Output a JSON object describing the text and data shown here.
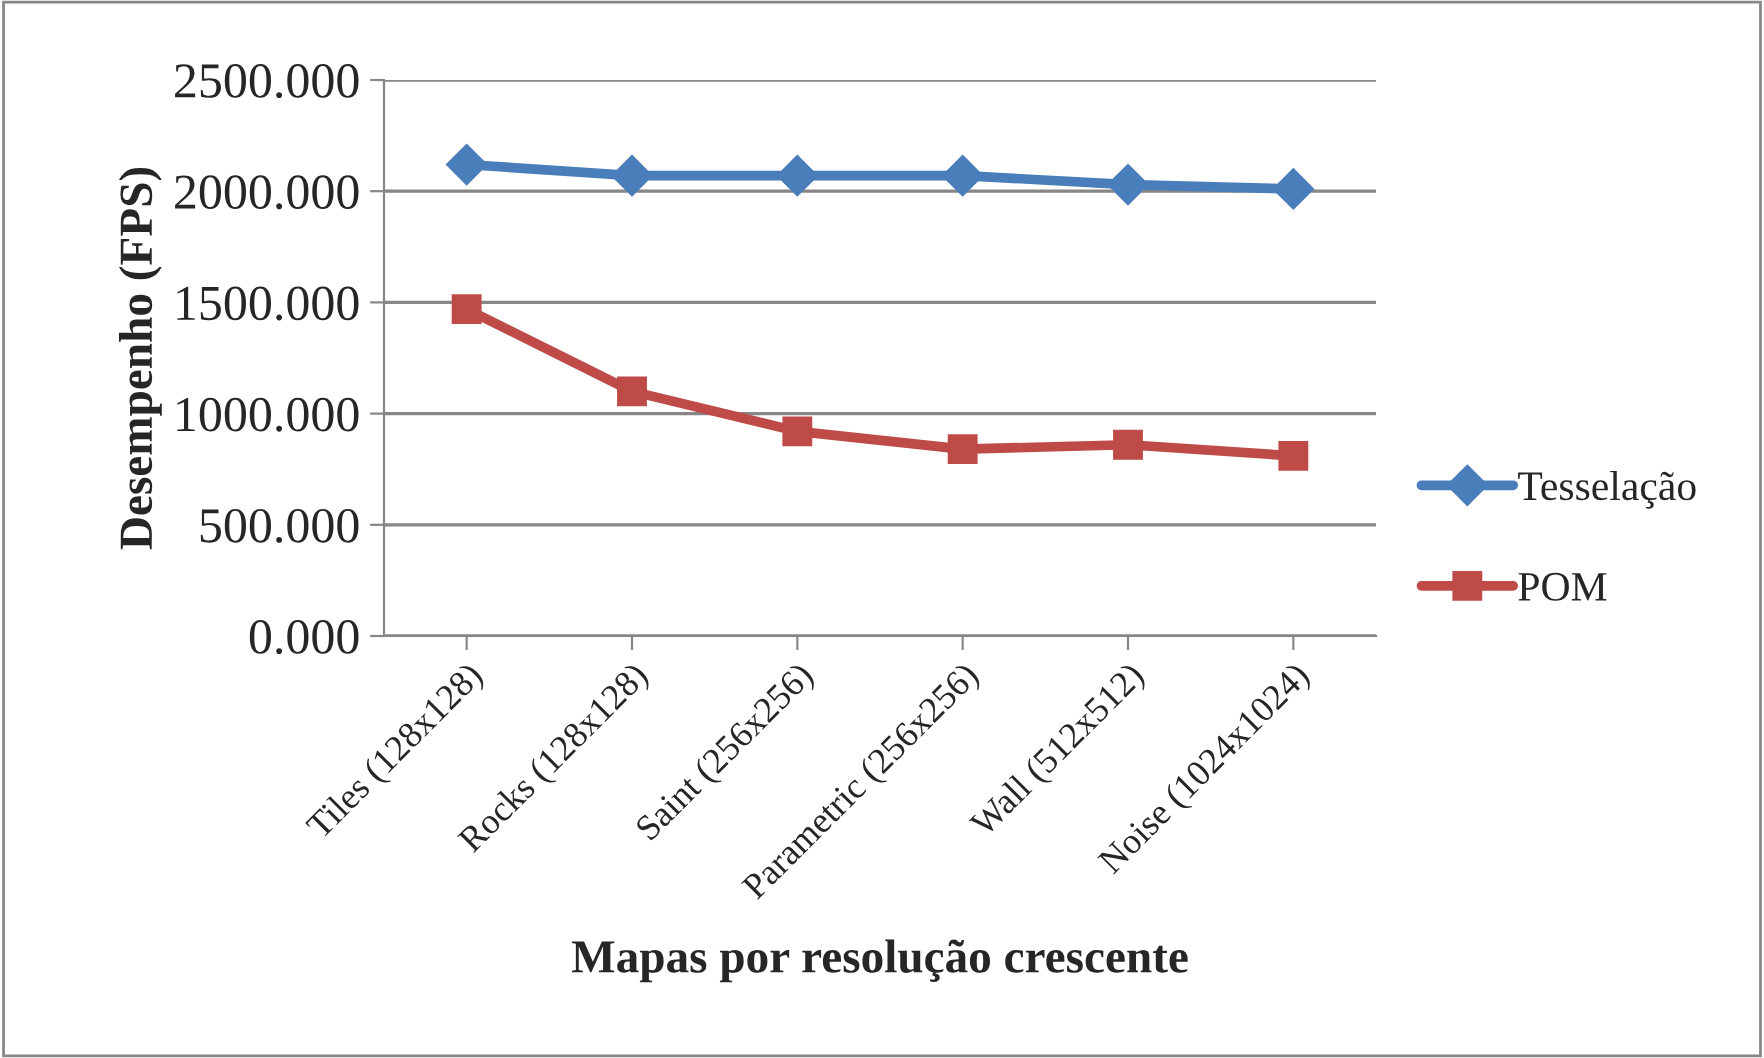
{
  "chart_data": {
    "type": "line",
    "xlabel": "Mapas por resolução crescente",
    "ylabel": "Desempenho (FPS)",
    "categories": [
      "Tiles (128x128)",
      "Rocks (128x128)",
      "Saint (256x256)",
      "Parametric (256x256)",
      "Wall (512x512)",
      "Noise (1024x1024)"
    ],
    "series": [
      {
        "name": "Tesselação",
        "color": "#4a7ebb",
        "marker": "diamond",
        "values": [
          2120,
          2070,
          2070,
          2070,
          2030,
          2010
        ]
      },
      {
        "name": "POM",
        "color": "#be4b48",
        "marker": "square",
        "values": [
          1470,
          1100,
          920,
          840,
          860,
          810
        ]
      }
    ],
    "ylim": [
      0,
      2500
    ],
    "yticks": [
      {
        "value": 0,
        "label": "0.000"
      },
      {
        "value": 500,
        "label": "500.000"
      },
      {
        "value": 1000,
        "label": "1000.000"
      },
      {
        "value": 1500,
        "label": "1500.000"
      },
      {
        "value": 2000,
        "label": "2000.000"
      },
      {
        "value": 2500,
        "label": "2500.000"
      }
    ],
    "grid": "y",
    "legend": "right"
  }
}
